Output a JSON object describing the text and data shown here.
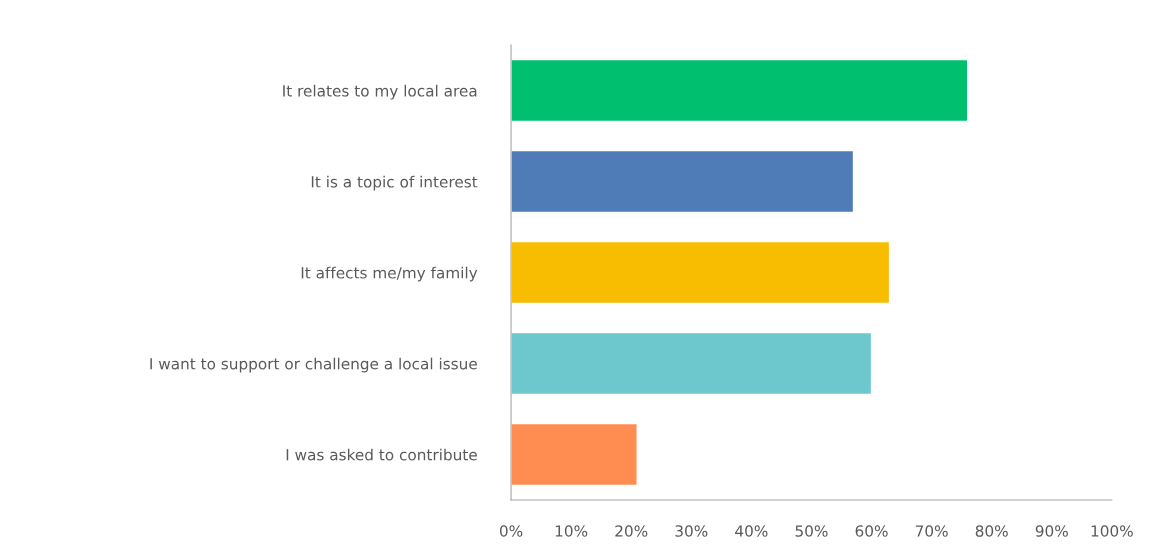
{
  "chart_data": {
    "type": "bar",
    "orientation": "horizontal",
    "categories": [
      "It relates to my local area",
      "It is a topic of interest",
      "It affects me/my family",
      "I want to support or challenge a local issue",
      "I was asked to contribute"
    ],
    "values": [
      76,
      57,
      63,
      60,
      21
    ],
    "colors": [
      "#00c06f",
      "#4f7bb7",
      "#f8bd00",
      "#6cc8cc",
      "#ff8c50"
    ],
    "xlim": [
      0,
      100
    ],
    "xticks": [
      {
        "value": 0,
        "label": "0%"
      },
      {
        "value": 10,
        "label": "10%"
      },
      {
        "value": 20,
        "label": "20%"
      },
      {
        "value": 30,
        "label": "30%"
      },
      {
        "value": 40,
        "label": "40%"
      },
      {
        "value": 50,
        "label": "50%"
      },
      {
        "value": 60,
        "label": "60%"
      },
      {
        "value": 70,
        "label": "70%"
      },
      {
        "value": 80,
        "label": "80%"
      },
      {
        "value": 90,
        "label": "90%"
      },
      {
        "value": 100,
        "label": "100%"
      }
    ],
    "grid": false
  }
}
